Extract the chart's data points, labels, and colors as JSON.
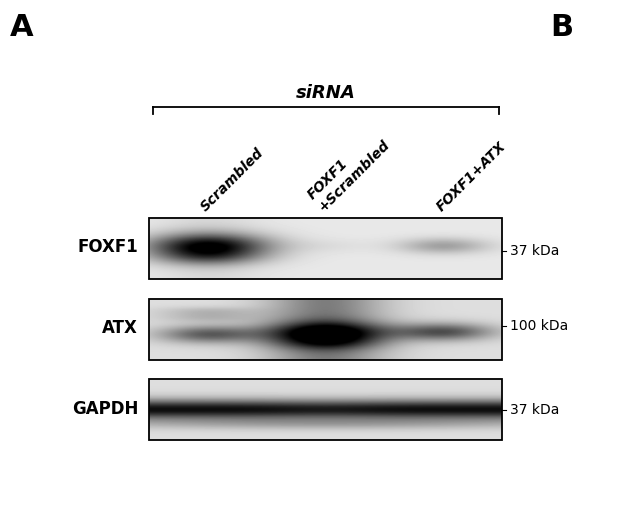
{
  "panel_label": "A",
  "panel_b_label": "B",
  "panel_label_fontsize": 22,
  "sirna_label": "siRNA",
  "col_labels": [
    "Scrambled",
    "FOXF1\n+Scrambled",
    "FOXF1+ATX"
  ],
  "row_labels": [
    "FOXF1",
    "ATX",
    "GAPDH"
  ],
  "mw_labels": [
    "37 kDa",
    "100 kDa",
    "37 kDa"
  ],
  "background_color": "#ffffff",
  "figure_width": 6.36,
  "figure_height": 5.17,
  "label_fontsize": 12,
  "mw_fontsize": 10,
  "col_label_fontsize": 10
}
